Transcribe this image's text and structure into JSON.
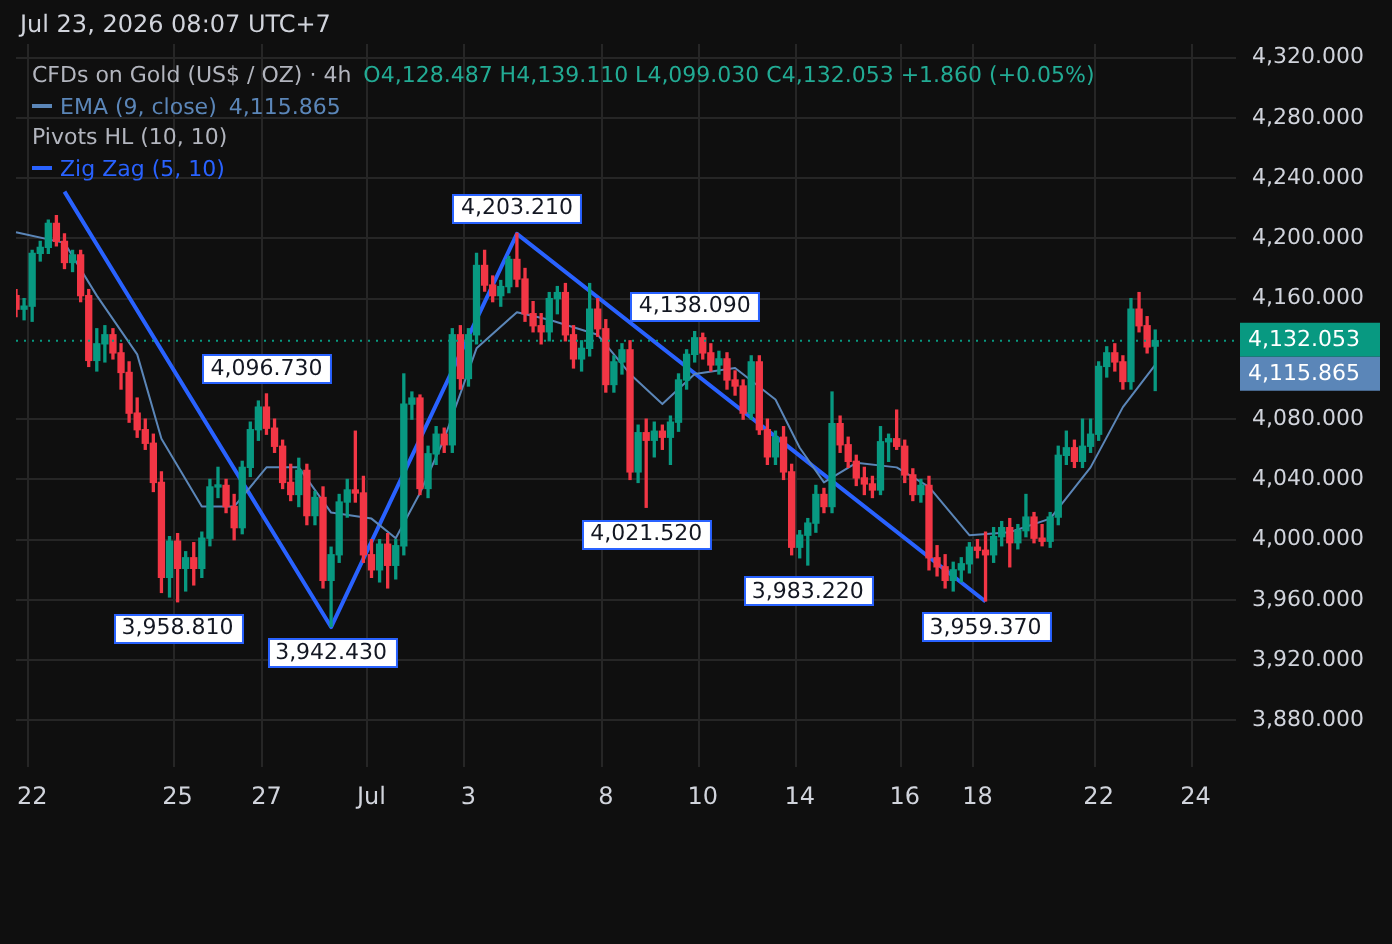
{
  "chart_data": {
    "type": "candlestick",
    "title": "CFDs on Gold (US$ / OZ) · 4h",
    "subtitle": "Jul 23, 2026 08:07 UTC+7",
    "categories": [
      null,
      null,
      "22",
      null,
      null,
      null,
      null,
      null,
      null,
      null,
      null,
      null,
      null,
      null,
      null,
      null,
      null,
      null,
      null,
      null,
      "25",
      null,
      null,
      null,
      null,
      null,
      null,
      null,
      null,
      null,
      null,
      "27",
      null,
      null,
      null,
      null,
      null,
      null,
      null,
      null,
      null,
      null,
      null,
      null,
      "Jul",
      null,
      null,
      null,
      null,
      null,
      null,
      null,
      null,
      null,
      null,
      null,
      "3",
      null,
      null,
      null,
      null,
      null,
      null,
      null,
      null,
      null,
      null,
      null,
      null,
      null,
      null,
      null,
      null,
      "8",
      null,
      null,
      null,
      null,
      null,
      null,
      null,
      null,
      null,
      null,
      null,
      "10",
      null,
      null,
      null,
      null,
      null,
      null,
      null,
      null,
      null,
      null,
      null,
      "14",
      null,
      null,
      null,
      null,
      null,
      null,
      null,
      null,
      null,
      null,
      null,
      null,
      "16",
      null,
      null,
      null,
      null,
      null,
      null,
      null,
      null,
      "18",
      null,
      null,
      null,
      null,
      null,
      null,
      null,
      null,
      null,
      null,
      null,
      null,
      null,
      null,
      "22",
      null,
      null,
      null,
      null,
      null,
      null,
      null,
      null,
      null,
      null,
      null,
      "24",
      null,
      null,
      null,
      null,
      null
    ],
    "ohlc": [
      [
        4162,
        4166,
        4148,
        4153
      ],
      [
        4153,
        4160,
        4146,
        4155
      ],
      [
        4155,
        4192,
        4145,
        4190
      ],
      [
        4190,
        4198,
        4185,
        4194
      ],
      [
        4194,
        4212,
        4190,
        4210
      ],
      [
        4210,
        4215,
        4195,
        4198
      ],
      [
        4198,
        4203,
        4180,
        4184
      ],
      [
        4184,
        4192,
        4178,
        4189
      ],
      [
        4189,
        4192,
        4158,
        4162
      ],
      [
        4162,
        4166,
        4115,
        4119
      ],
      [
        4119,
        4140,
        4112,
        4130
      ],
      [
        4130,
        4142,
        4118,
        4136
      ],
      [
        4136,
        4140,
        4120,
        4124
      ],
      [
        4124,
        4130,
        4100,
        4111
      ],
      [
        4111,
        4118,
        4078,
        4084
      ],
      [
        4084,
        4094,
        4068,
        4073
      ],
      [
        4073,
        4080,
        4060,
        4064
      ],
      [
        4064,
        4070,
        4032,
        4038
      ],
      [
        4038,
        4045,
        3965,
        3975
      ],
      [
        3975,
        4002,
        3962,
        3999
      ],
      [
        3999,
        4004,
        3958.81,
        3981
      ],
      [
        3981,
        3992,
        3966,
        3988
      ],
      [
        3988,
        3998,
        3970,
        3981
      ],
      [
        3981,
        4005,
        3975,
        4001
      ],
      [
        4001,
        4040,
        3996,
        4035
      ],
      [
        4035,
        4048,
        4028,
        4036
      ],
      [
        4036,
        4040,
        4018,
        4022
      ],
      [
        4022,
        4030,
        4000,
        4008
      ],
      [
        4008,
        4052,
        4004,
        4048
      ],
      [
        4048,
        4078,
        4042,
        4073
      ],
      [
        4073,
        4092,
        4066,
        4088
      ],
      [
        4088,
        4096.73,
        4070,
        4074
      ],
      [
        4074,
        4080,
        4058,
        4062
      ],
      [
        4062,
        4066,
        4034,
        4038
      ],
      [
        4038,
        4050,
        4026,
        4030
      ],
      [
        4030,
        4054,
        4022,
        4046
      ],
      [
        4046,
        4050,
        4010,
        4016
      ],
      [
        4016,
        4032,
        4010,
        4028
      ],
      [
        4028,
        4035,
        3968,
        3973
      ],
      [
        3973,
        3995,
        3942.43,
        3990
      ],
      [
        3990,
        4030,
        3985,
        4025
      ],
      [
        4025,
        4040,
        4015,
        4033
      ],
      [
        4033,
        4072,
        4025,
        4031
      ],
      [
        4031,
        4042,
        3985,
        3990
      ],
      [
        3990,
        4000,
        3975,
        3980
      ],
      [
        3980,
        4000,
        3972,
        3997
      ],
      [
        3997,
        4004,
        3968,
        3983
      ],
      [
        3983,
        4000,
        3974,
        3996
      ],
      [
        3996,
        4110,
        3990,
        4090
      ],
      [
        4090,
        4098,
        4080,
        4094
      ],
      [
        4094,
        4096,
        4030,
        4034
      ],
      [
        4034,
        4062,
        4028,
        4057
      ],
      [
        4057,
        4075,
        4050,
        4070
      ],
      [
        4070,
        4074,
        4058,
        4063
      ],
      [
        4063,
        4140,
        4058,
        4136
      ],
      [
        4136,
        4142,
        4100,
        4107
      ],
      [
        4107,
        4140,
        4102,
        4136
      ],
      [
        4136,
        4190,
        4130,
        4182
      ],
      [
        4182,
        4192,
        4165,
        4169
      ],
      [
        4169,
        4175,
        4158,
        4162
      ],
      [
        4162,
        4172,
        4155,
        4168
      ],
      [
        4168,
        4188,
        4164,
        4186
      ],
      [
        4186,
        4203.21,
        4168,
        4173
      ],
      [
        4173,
        4180,
        4145,
        4150
      ],
      [
        4150,
        4158,
        4138,
        4142
      ],
      [
        4142,
        4150,
        4130,
        4138
      ],
      [
        4138,
        4164,
        4132,
        4160
      ],
      [
        4160,
        4168,
        4150,
        4164
      ],
      [
        4164,
        4170,
        4132,
        4136
      ],
      [
        4136,
        4142,
        4114,
        4120
      ],
      [
        4120,
        4132,
        4112,
        4127
      ],
      [
        4127,
        4170,
        4122,
        4153
      ],
      [
        4153,
        4160,
        4135,
        4140
      ],
      [
        4140,
        4146,
        4098,
        4103
      ],
      [
        4103,
        4122,
        4098,
        4118
      ],
      [
        4118,
        4130,
        4110,
        4126
      ],
      [
        4126,
        4132,
        4040,
        4045
      ],
      [
        4045,
        4076,
        4038,
        4071
      ],
      [
        4071,
        4080,
        4021.52,
        4066
      ],
      [
        4066,
        4078,
        4055,
        4072
      ],
      [
        4072,
        4076,
        4060,
        4068
      ],
      [
        4068,
        4082,
        4050,
        4078
      ],
      [
        4078,
        4110,
        4072,
        4106
      ],
      [
        4106,
        4126,
        4100,
        4123
      ],
      [
        4123,
        4138.09,
        4118,
        4134
      ],
      [
        4134,
        4137,
        4120,
        4124
      ],
      [
        4124,
        4130,
        4112,
        4116
      ],
      [
        4116,
        4125,
        4110,
        4120
      ],
      [
        4120,
        4124,
        4100,
        4106
      ],
      [
        4106,
        4112,
        4096,
        4102
      ],
      [
        4102,
        4106,
        4080,
        4084
      ],
      [
        4084,
        4122,
        4080,
        4118
      ],
      [
        4118,
        4122,
        4070,
        4073
      ],
      [
        4073,
        4080,
        4050,
        4055
      ],
      [
        4055,
        4072,
        4050,
        4068
      ],
      [
        4068,
        4075,
        4040,
        4045
      ],
      [
        4045,
        4050,
        3990,
        3995
      ],
      [
        3995,
        4006,
        3988,
        4003
      ],
      [
        4003,
        4014,
        3983.22,
        4011
      ],
      [
        4011,
        4036,
        4005,
        4030
      ],
      [
        4030,
        4034,
        4018,
        4022
      ],
      [
        4022,
        4098,
        4018,
        4077
      ],
      [
        4077,
        4082,
        4058,
        4063
      ],
      [
        4063,
        4068,
        4048,
        4052
      ],
      [
        4052,
        4056,
        4036,
        4041
      ],
      [
        4041,
        4048,
        4030,
        4037
      ],
      [
        4037,
        4042,
        4028,
        4033
      ],
      [
        4033,
        4075,
        4030,
        4065
      ],
      [
        4065,
        4070,
        4052,
        4067
      ],
      [
        4067,
        4086,
        4060,
        4062
      ],
      [
        4062,
        4066,
        4038,
        4043
      ],
      [
        4043,
        4047,
        4026,
        4030
      ],
      [
        4030,
        4040,
        4025,
        4036
      ],
      [
        4036,
        4042,
        3980,
        3988
      ],
      [
        3988,
        3996,
        3976,
        3982
      ],
      [
        3982,
        3990,
        3968,
        3973
      ],
      [
        3973,
        3985,
        3966,
        3980
      ],
      [
        3980,
        3988,
        3972,
        3984
      ],
      [
        3984,
        3998,
        3978,
        3995
      ],
      [
        3995,
        4000,
        3988,
        3993
      ],
      [
        3993,
        4005,
        3959.37,
        3990
      ],
      [
        3990,
        4008,
        3985,
        4002
      ],
      [
        4002,
        4012,
        3996,
        4008
      ],
      [
        4008,
        4014,
        3982,
        3998
      ],
      [
        3998,
        4010,
        3994,
        4006
      ],
      [
        4006,
        4030,
        4002,
        4015
      ],
      [
        4015,
        4018,
        3998,
        4001
      ],
      [
        4001,
        4010,
        3996,
        3999
      ],
      [
        3999,
        4018,
        3995,
        4015
      ],
      [
        4015,
        4062,
        4010,
        4056
      ],
      [
        4056,
        4072,
        4050,
        4061
      ],
      [
        4061,
        4066,
        4048,
        4052
      ],
      [
        4052,
        4080,
        4048,
        4062
      ],
      [
        4062,
        4080,
        4058,
        4070
      ],
      [
        4070,
        4118,
        4066,
        4115
      ],
      [
        4115,
        4128,
        4108,
        4124
      ],
      [
        4124,
        4130,
        4112,
        4118
      ],
      [
        4118,
        4122,
        4100,
        4105
      ],
      [
        4105,
        4160,
        4100,
        4153
      ],
      [
        4153,
        4164,
        4138,
        4142
      ],
      [
        4142,
        4148,
        4124,
        4128
      ],
      [
        4128.487,
        4139.11,
        4099.03,
        4132.053
      ],
      null,
      null,
      null,
      null,
      null,
      null,
      null,
      null,
      null,
      null
    ],
    "series": [
      {
        "name": "EMA (9, close)",
        "type": "line",
        "color": "#5b86b8",
        "values": [
          4204,
          null,
          null,
          null,
          null,
          null,
          4197,
          null,
          null,
          null,
          4162,
          null,
          null,
          null,
          null,
          4123,
          null,
          null,
          4067,
          null,
          null,
          null,
          null,
          4022,
          null,
          null,
          null,
          4022,
          null,
          null,
          null,
          4048,
          null,
          null,
          null,
          4048,
          null,
          null,
          null,
          4018,
          null,
          null,
          null,
          null,
          4014,
          null,
          null,
          4001,
          null,
          null,
          4031,
          null,
          null,
          4067,
          null,
          null,
          null,
          4127,
          null,
          null,
          null,
          null,
          4151,
          null,
          null,
          null,
          4146,
          null,
          null,
          null,
          null,
          null,
          4136,
          null,
          null,
          null,
          4110,
          null,
          null,
          null,
          4090,
          null,
          null,
          null,
          4110,
          null,
          null,
          null,
          null,
          4114,
          null,
          null,
          null,
          null,
          4093,
          null,
          null,
          4061,
          null,
          null,
          4038,
          null,
          null,
          null,
          4051,
          null,
          null,
          null,
          null,
          4048,
          null,
          null,
          null,
          4035,
          null,
          null,
          null,
          null,
          4003,
          null,
          null,
          null,
          null,
          4005,
          null,
          null,
          null,
          null,
          4014,
          null,
          null,
          null,
          null,
          4048,
          null,
          null,
          null,
          4088,
          null,
          null,
          null,
          4116,
          null,
          null,
          null,
          null,
          null,
          null,
          null,
          null,
          null,
          null
        ]
      },
      {
        "name": "Zig Zag (5, 10)",
        "type": "line",
        "color": "#2962ff",
        "values": [
          null,
          null,
          null,
          null,
          null,
          null,
          4231,
          null,
          null,
          null,
          null,
          null,
          null,
          null,
          null,
          null,
          null,
          null,
          null,
          null,
          null,
          null,
          null,
          null,
          null,
          null,
          null,
          null,
          null,
          null,
          null,
          null,
          null,
          null,
          null,
          null,
          null,
          null,
          null,
          3942,
          null,
          null,
          null,
          null,
          null,
          null,
          null,
          null,
          null,
          null,
          null,
          null,
          null,
          null,
          null,
          null,
          null,
          null,
          null,
          null,
          null,
          null,
          4203,
          null,
          null,
          null,
          null,
          null,
          null,
          null,
          null,
          null,
          null,
          null,
          null,
          null,
          null,
          null,
          null,
          null,
          null,
          null,
          null,
          null,
          null,
          null,
          null,
          null,
          null,
          null,
          null,
          null,
          null,
          null,
          null,
          null,
          null,
          null,
          null,
          null,
          null,
          null,
          null,
          null,
          null,
          null,
          null,
          null,
          null,
          null,
          null,
          null,
          null,
          null,
          null,
          null,
          null,
          null,
          null,
          null,
          3959,
          null,
          null,
          null,
          null,
          null,
          null,
          null,
          null,
          null,
          null,
          null,
          null,
          null,
          null,
          null,
          null,
          null,
          null,
          null,
          null,
          null,
          null,
          null,
          null,
          null,
          null,
          null,
          null,
          null,
          null,
          null
        ]
      }
    ],
    "ylim": [
      3849,
      4329
    ],
    "yticks": [
      {
        "value": 3880,
        "label": "3,880.000"
      },
      {
        "value": 3920,
        "label": "3,920.000"
      },
      {
        "value": 3960,
        "label": "3,960.000"
      },
      {
        "value": 4000,
        "label": "4,000.000"
      },
      {
        "value": 4040,
        "label": "4,040.000"
      },
      {
        "value": 4080,
        "label": "4,080.000"
      },
      {
        "value": 4160,
        "label": "4,160.000"
      },
      {
        "value": 4200,
        "label": "4,200.000"
      },
      {
        "value": 4240,
        "label": "4,240.000"
      },
      {
        "value": 4280,
        "label": "4,280.000"
      },
      {
        "value": 4320,
        "label": "4,320.000"
      }
    ],
    "grid": true,
    "legend": "top left",
    "ref_lines": [
      {
        "axis": "y",
        "value": 4132.053,
        "label": "4,132.053",
        "color": "#089981",
        "line_style": "dotted"
      }
    ],
    "annotations": [
      "O4,128.487 H4,139.110 L4,099.030 C4,132.053 +1.860 (+0.05%)",
      "4,115.865",
      "Pivots HL (10, 10)",
      {
        "text": "3,958.810",
        "y": 3958.81
      },
      {
        "text": "4,096.730",
        "y": 4096.73
      },
      {
        "text": "3,942.430",
        "y": 3942.43
      },
      {
        "text": "4,203.210",
        "y": 4203.21
      },
      {
        "text": "4,021.520",
        "y": 4021.52
      },
      {
        "text": "4,138.090",
        "y": 4138.09
      },
      {
        "text": "3,983.220",
        "y": 3983.22
      },
      {
        "text": "3,959.370",
        "y": 3959.37
      }
    ]
  }
}
